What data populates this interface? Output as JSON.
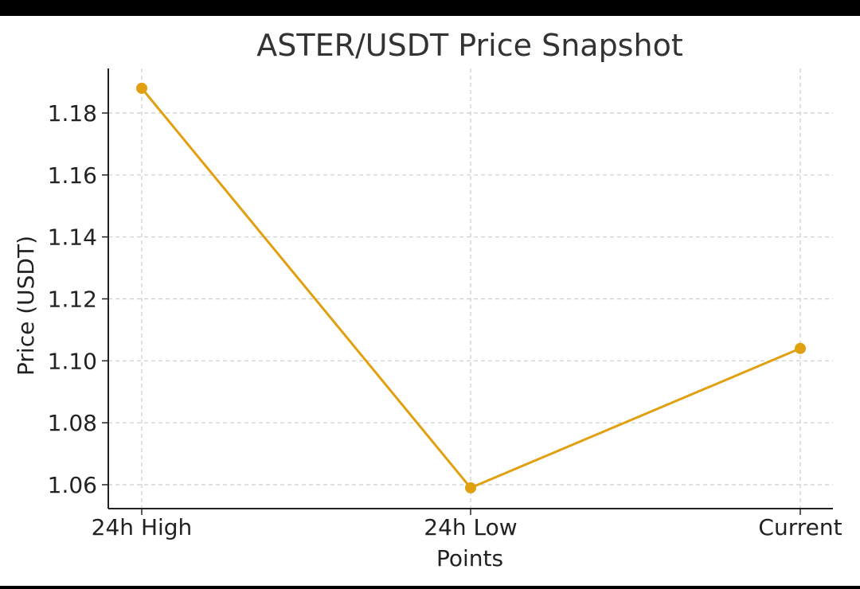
{
  "chart_data": {
    "type": "line",
    "title": "ASTER/USDT Price Snapshot",
    "xlabel": "Points",
    "ylabel": "Price (USDT)",
    "categories": [
      "24h High",
      "24h Low",
      "Current"
    ],
    "series": [
      {
        "values": [
          1.188,
          1.059,
          1.104
        ]
      }
    ],
    "yticks": [
      "1.06",
      "1.08",
      "1.10",
      "1.12",
      "1.14",
      "1.16",
      "1.18"
    ],
    "ylim": [
      1.052,
      1.195
    ],
    "grid": true,
    "color": "#E0A010"
  }
}
